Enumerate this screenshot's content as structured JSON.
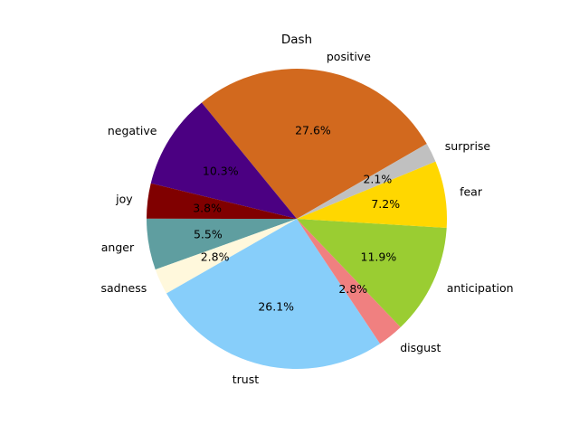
{
  "chart_data": {
    "type": "pie",
    "title": "Dash",
    "slices": [
      {
        "label": "positive",
        "percent": 27.6,
        "pct_text": "27.6%",
        "color": "#d2691e"
      },
      {
        "label": "negative",
        "percent": 10.3,
        "pct_text": "10.3%",
        "color": "#4b0082"
      },
      {
        "label": "joy",
        "percent": 3.8,
        "pct_text": "3.8%",
        "color": "#800000"
      },
      {
        "label": "anger",
        "percent": 5.5,
        "pct_text": "5.5%",
        "color": "#5f9ea0"
      },
      {
        "label": "sadness",
        "percent": 2.8,
        "pct_text": "2.8%",
        "color": "#fff8dc"
      },
      {
        "label": "trust",
        "percent": 26.1,
        "pct_text": "26.1%",
        "color": "#87cefa"
      },
      {
        "label": "disgust",
        "percent": 2.8,
        "pct_text": "2.8%",
        "color": "#f08080"
      },
      {
        "label": "anticipation",
        "percent": 11.9,
        "pct_text": "11.9%",
        "color": "#9acd32"
      },
      {
        "label": "fear",
        "percent": 7.2,
        "pct_text": "7.2%",
        "color": "#ffd700"
      },
      {
        "label": "surprise",
        "percent": 2.1,
        "pct_text": "2.1%",
        "color": "#c0c0c0"
      }
    ],
    "start_angle_deg": 30,
    "direction": "counterclockwise"
  }
}
